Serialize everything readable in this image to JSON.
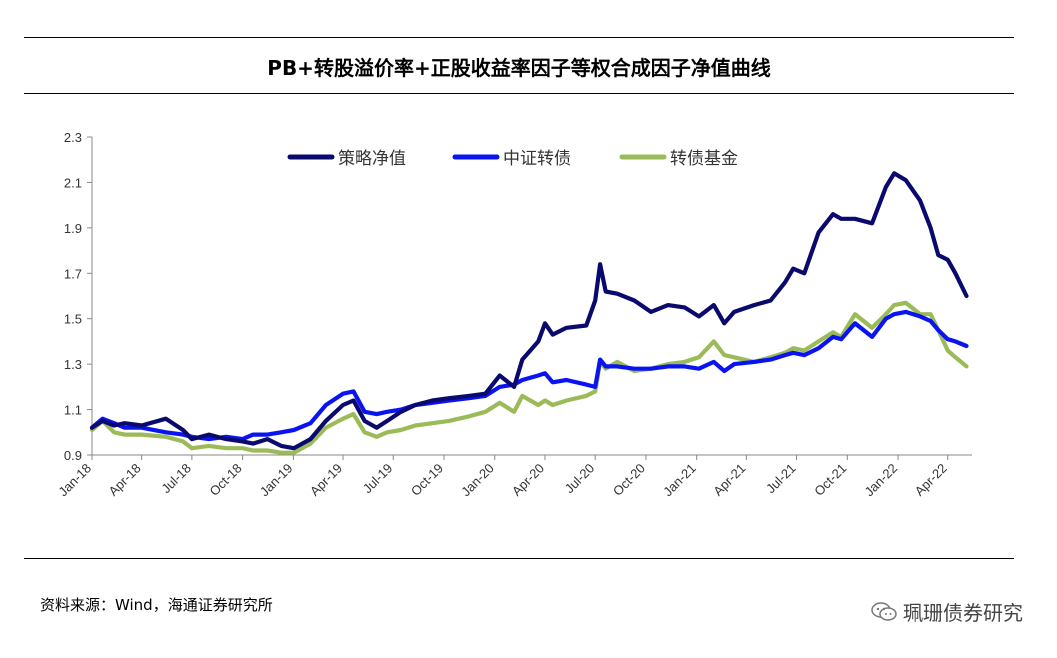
{
  "title": "PB+转股溢价率+正股收益率因子等权合成因子净值曲线",
  "source": "资料来源：Wind，海通证券研究所",
  "watermark": "珮珊债券研究",
  "colors": {
    "strategy": "#0a0a6e",
    "index": "#0a14f0",
    "fund": "#9bbb59"
  },
  "chart_data": {
    "type": "line",
    "title": "PB+转股溢价率+正股收益率因子等权合成因子净值曲线",
    "xlabel": "",
    "ylabel": "",
    "ylim": [
      0.9,
      2.3
    ],
    "yticks": [
      0.9,
      1.1,
      1.3,
      1.5,
      1.7,
      1.9,
      2.1,
      2.3
    ],
    "xlim": [
      "2018-01-01",
      "2022-05-15"
    ],
    "xticks": [
      "Jan-18",
      "Apr-18",
      "Jul-18",
      "Oct-18",
      "Jan-19",
      "Apr-19",
      "Jul-19",
      "Oct-19",
      "Jan-20",
      "Apr-20",
      "Jul-20",
      "Oct-20",
      "Jan-21",
      "Apr-21",
      "Jul-21",
      "Oct-21",
      "Jan-22",
      "Apr-22"
    ],
    "legend": "top-center",
    "grid": false,
    "series": [
      {
        "name": "策略净值",
        "x": [
          "2018-01-01",
          "2018-01-20",
          "2018-02-10",
          "2018-03-01",
          "2018-04-01",
          "2018-05-15",
          "2018-06-15",
          "2018-07-01",
          "2018-08-01",
          "2018-09-01",
          "2018-10-01",
          "2018-10-20",
          "2018-11-15",
          "2018-12-10",
          "2019-01-02",
          "2019-02-01",
          "2019-03-01",
          "2019-04-01",
          "2019-04-20",
          "2019-05-10",
          "2019-06-01",
          "2019-06-20",
          "2019-07-15",
          "2019-08-10",
          "2019-09-10",
          "2019-10-10",
          "2019-11-15",
          "2019-12-15",
          "2020-01-10",
          "2020-02-05",
          "2020-02-20",
          "2020-03-20",
          "2020-04-01",
          "2020-04-15",
          "2020-05-10",
          "2020-06-15",
          "2020-07-01",
          "2020-07-10",
          "2020-07-20",
          "2020-08-10",
          "2020-09-10",
          "2020-10-10",
          "2020-11-10",
          "2020-12-10",
          "2021-01-05",
          "2021-02-01",
          "2021-02-20",
          "2021-03-10",
          "2021-04-15",
          "2021-05-15",
          "2021-06-10",
          "2021-06-25",
          "2021-07-15",
          "2021-08-10",
          "2021-09-05",
          "2021-09-20",
          "2021-10-15",
          "2021-11-15",
          "2021-12-10",
          "2021-12-25",
          "2022-01-15",
          "2022-02-10",
          "2022-03-01",
          "2022-03-15",
          "2022-04-01",
          "2022-04-15",
          "2022-05-05"
        ],
        "values": [
          1.02,
          1.05,
          1.03,
          1.04,
          1.03,
          1.06,
          1.01,
          0.97,
          0.99,
          0.97,
          0.96,
          0.95,
          0.97,
          0.94,
          0.93,
          0.97,
          1.05,
          1.12,
          1.14,
          1.05,
          1.02,
          1.05,
          1.09,
          1.12,
          1.14,
          1.15,
          1.16,
          1.17,
          1.25,
          1.2,
          1.32,
          1.4,
          1.48,
          1.43,
          1.46,
          1.47,
          1.58,
          1.74,
          1.62,
          1.61,
          1.58,
          1.53,
          1.56,
          1.55,
          1.51,
          1.56,
          1.48,
          1.53,
          1.56,
          1.58,
          1.66,
          1.72,
          1.7,
          1.88,
          1.96,
          1.94,
          1.94,
          1.92,
          2.08,
          2.14,
          2.11,
          2.02,
          1.9,
          1.78,
          1.76,
          1.7,
          1.6
        ]
      },
      {
        "name": "中证转债",
        "x": [
          "2018-01-01",
          "2018-01-20",
          "2018-02-10",
          "2018-03-01",
          "2018-04-01",
          "2018-05-15",
          "2018-06-15",
          "2018-07-01",
          "2018-08-01",
          "2018-09-01",
          "2018-10-01",
          "2018-10-20",
          "2018-11-15",
          "2018-12-10",
          "2019-01-02",
          "2019-02-01",
          "2019-03-01",
          "2019-04-01",
          "2019-04-20",
          "2019-05-10",
          "2019-06-01",
          "2019-06-20",
          "2019-07-15",
          "2019-08-10",
          "2019-09-10",
          "2019-10-10",
          "2019-11-15",
          "2019-12-15",
          "2020-01-10",
          "2020-02-05",
          "2020-02-20",
          "2020-03-20",
          "2020-04-01",
          "2020-04-15",
          "2020-05-10",
          "2020-06-15",
          "2020-07-01",
          "2020-07-10",
          "2020-07-20",
          "2020-08-10",
          "2020-09-10",
          "2020-10-10",
          "2020-11-10",
          "2020-12-10",
          "2021-01-05",
          "2021-02-01",
          "2021-02-20",
          "2021-03-10",
          "2021-04-15",
          "2021-05-15",
          "2021-06-10",
          "2021-06-25",
          "2021-07-15",
          "2021-08-10",
          "2021-09-05",
          "2021-09-20",
          "2021-10-15",
          "2021-11-15",
          "2021-12-10",
          "2021-12-25",
          "2022-01-15",
          "2022-02-10",
          "2022-03-01",
          "2022-03-15",
          "2022-04-01",
          "2022-04-15",
          "2022-05-05"
        ],
        "values": [
          1.02,
          1.06,
          1.04,
          1.02,
          1.02,
          1.0,
          0.99,
          0.98,
          0.97,
          0.98,
          0.97,
          0.99,
          0.99,
          1.0,
          1.01,
          1.04,
          1.12,
          1.17,
          1.18,
          1.09,
          1.08,
          1.09,
          1.1,
          1.12,
          1.13,
          1.14,
          1.15,
          1.16,
          1.2,
          1.21,
          1.23,
          1.25,
          1.26,
          1.22,
          1.23,
          1.21,
          1.2,
          1.32,
          1.29,
          1.29,
          1.28,
          1.28,
          1.29,
          1.29,
          1.28,
          1.31,
          1.27,
          1.3,
          1.31,
          1.32,
          1.34,
          1.35,
          1.34,
          1.37,
          1.42,
          1.41,
          1.48,
          1.42,
          1.5,
          1.52,
          1.53,
          1.51,
          1.49,
          1.45,
          1.41,
          1.4,
          1.38
        ]
      },
      {
        "name": "转债基金",
        "x": [
          "2018-01-01",
          "2018-01-20",
          "2018-02-10",
          "2018-03-01",
          "2018-04-01",
          "2018-05-15",
          "2018-06-15",
          "2018-07-01",
          "2018-08-01",
          "2018-09-01",
          "2018-10-01",
          "2018-10-20",
          "2018-11-15",
          "2018-12-10",
          "2019-01-02",
          "2019-02-01",
          "2019-03-01",
          "2019-04-01",
          "2019-04-20",
          "2019-05-10",
          "2019-06-01",
          "2019-06-20",
          "2019-07-15",
          "2019-08-10",
          "2019-09-10",
          "2019-10-10",
          "2019-11-15",
          "2019-12-15",
          "2020-01-10",
          "2020-02-05",
          "2020-02-20",
          "2020-03-20",
          "2020-04-01",
          "2020-04-15",
          "2020-05-10",
          "2020-06-15",
          "2020-07-01",
          "2020-07-10",
          "2020-07-20",
          "2020-08-10",
          "2020-09-10",
          "2020-10-10",
          "2020-11-10",
          "2020-12-10",
          "2021-01-05",
          "2021-02-01",
          "2021-02-20",
          "2021-03-10",
          "2021-04-15",
          "2021-05-15",
          "2021-06-10",
          "2021-06-25",
          "2021-07-15",
          "2021-08-10",
          "2021-09-05",
          "2021-09-20",
          "2021-10-15",
          "2021-11-15",
          "2021-12-10",
          "2021-12-25",
          "2022-01-15",
          "2022-02-10",
          "2022-03-01",
          "2022-03-15",
          "2022-04-01",
          "2022-04-15",
          "2022-05-05"
        ],
        "values": [
          1.01,
          1.05,
          1.0,
          0.99,
          0.99,
          0.98,
          0.96,
          0.93,
          0.94,
          0.93,
          0.93,
          0.92,
          0.92,
          0.91,
          0.91,
          0.95,
          1.02,
          1.06,
          1.08,
          1.0,
          0.98,
          1.0,
          1.01,
          1.03,
          1.04,
          1.05,
          1.07,
          1.09,
          1.13,
          1.09,
          1.16,
          1.12,
          1.14,
          1.12,
          1.14,
          1.16,
          1.18,
          1.31,
          1.28,
          1.31,
          1.27,
          1.28,
          1.3,
          1.31,
          1.33,
          1.4,
          1.34,
          1.33,
          1.31,
          1.33,
          1.35,
          1.37,
          1.36,
          1.4,
          1.44,
          1.42,
          1.52,
          1.46,
          1.52,
          1.56,
          1.57,
          1.52,
          1.52,
          1.45,
          1.36,
          1.33,
          1.29
        ]
      }
    ]
  }
}
